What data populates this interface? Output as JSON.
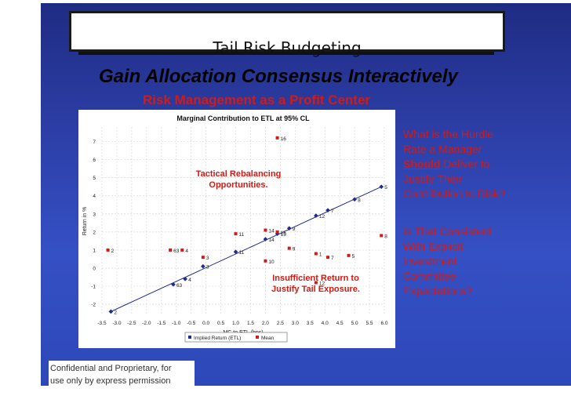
{
  "slide": {
    "title": "Tail Risk Budgeting",
    "subtitle": "Gain  Allocation Consensus Interactively",
    "subtitle2": "Risk Management as a Profit Center",
    "callout_tactical": [
      "Tactical Rebalancing",
      "Opportunities."
    ],
    "callout_insufficient": [
      "Insufficient Return to",
      "Justify Tail Exposure."
    ],
    "question1": {
      "lines": [
        "What is the Hurdle",
        "Rate a Manager",
        "Should Deliver to",
        "Justify Their",
        "Contribution to Risk?"
      ],
      "emphasis": "Should"
    },
    "question2": {
      "lines": [
        "Is That Consistent",
        "With Explicit",
        "Investment",
        "Committee",
        "Expectations?"
      ]
    },
    "footer": [
      "Confidential and Proprietary, for",
      "use only by express permission"
    ]
  },
  "colors": {
    "background": "#2d3fa8",
    "accent_red": "#d31a14",
    "implied_blue": "#1f2b8f"
  },
  "chart_data": {
    "type": "scatter",
    "title": "Marginal Contribution to ETL at 95% CL",
    "xlabel": "MC to ETL (bps)",
    "ylabel": "Return in %",
    "xlim": [
      -3.5,
      6.0
    ],
    "ylim": [
      -2.6,
      7.8
    ],
    "xticks": [
      "-3.5",
      "-3.0",
      "-2.5",
      "-2.0",
      "-1.5",
      "-1.0",
      "-0.5",
      "0.0",
      "0.5",
      "1.0",
      "1.5",
      "2.0",
      "2.5",
      "3.0",
      "3.5",
      "4.0",
      "4.5",
      "5.0",
      "5.5",
      "6.0"
    ],
    "yticks": [
      "-2",
      "-1",
      "0",
      "1",
      "2",
      "3",
      "4",
      "5",
      "6",
      "7"
    ],
    "grid": true,
    "legend_position": "bottom",
    "series": [
      {
        "name": "Implied Return (ETL)",
        "marker": "diamond",
        "color": "#1f2b8f",
        "points": [
          {
            "label": "2",
            "x": -3.2,
            "y": -2.4
          },
          {
            "label": "63",
            "x": -1.1,
            "y": -0.9
          },
          {
            "label": "4",
            "x": -0.7,
            "y": -0.6
          },
          {
            "label": "3",
            "x": -0.1,
            "y": 0.1
          },
          {
            "label": "11",
            "x": 1.0,
            "y": 0.9
          },
          {
            "label": "14",
            "x": 2.0,
            "y": 1.6
          },
          {
            "label": "15",
            "x": 2.4,
            "y": 1.9
          },
          {
            "label": "9",
            "x": 2.8,
            "y": 2.2
          },
          {
            "label": "12",
            "x": 3.7,
            "y": 2.9
          },
          {
            "label": "7",
            "x": 4.1,
            "y": 3.2
          },
          {
            "label": "8",
            "x": 5.0,
            "y": 3.8
          },
          {
            "label": "5",
            "x": 5.9,
            "y": 4.5
          }
        ]
      },
      {
        "name": "Mean",
        "marker": "square",
        "color": "#d31a14",
        "points": [
          {
            "label": "16",
            "x": 2.4,
            "y": 7.2
          },
          {
            "label": "8",
            "x": 5.9,
            "y": 1.8
          },
          {
            "label": "14",
            "x": 2.0,
            "y": 2.1
          },
          {
            "label": "11",
            "x": 1.0,
            "y": 1.9
          },
          {
            "label": "15",
            "x": 2.4,
            "y": 2.0
          },
          {
            "label": "2",
            "x": -3.3,
            "y": 1.0
          },
          {
            "label": "63",
            "x": -1.2,
            "y": 1.0
          },
          {
            "label": "4",
            "x": -0.8,
            "y": 1.0
          },
          {
            "label": "9",
            "x": 2.8,
            "y": 1.1
          },
          {
            "label": "3",
            "x": -0.1,
            "y": 0.6
          },
          {
            "label": "10",
            "x": 2.0,
            "y": 0.4
          },
          {
            "label": "1",
            "x": 3.7,
            "y": 0.8
          },
          {
            "label": "7",
            "x": 4.1,
            "y": 0.6
          },
          {
            "label": "5",
            "x": 4.8,
            "y": 0.7
          },
          {
            "label": "12",
            "x": 3.7,
            "y": -0.8
          }
        ]
      }
    ]
  }
}
